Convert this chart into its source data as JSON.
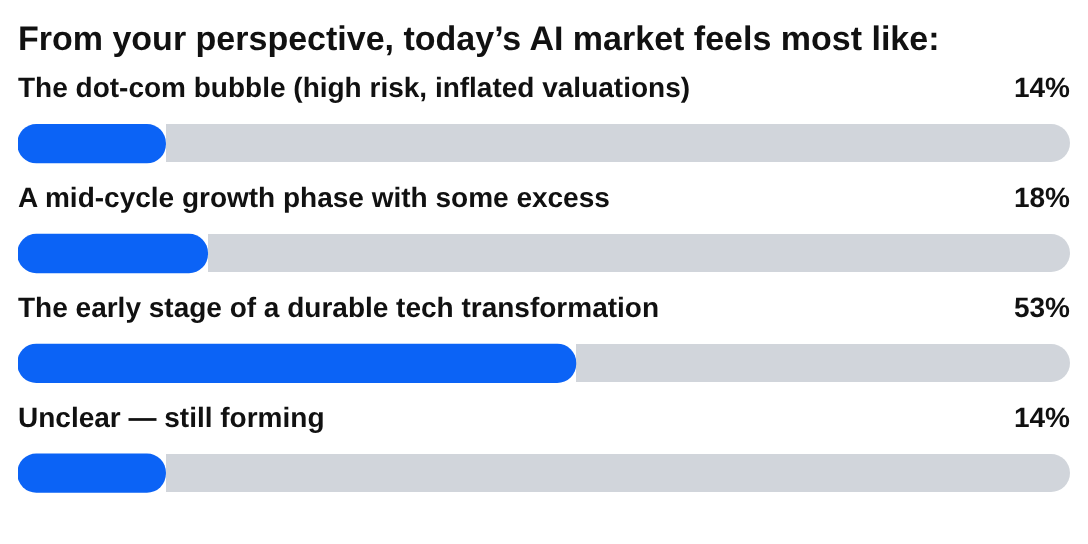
{
  "chart_data": {
    "type": "bar",
    "orientation": "horizontal",
    "title": "From your perspective, today’s AI market feels most like:",
    "categories": [
      "The dot-com bubble (high risk, inflated valuations)",
      "A mid-cycle growth phase with some excess",
      "The early stage of a durable tech transformation",
      "Unclear — still forming"
    ],
    "values": [
      14,
      18,
      53,
      14
    ],
    "value_labels": [
      "14%",
      "18%",
      "53%",
      "14%"
    ],
    "color": "#0b63f6",
    "xlim": [
      0,
      100
    ],
    "tick_labels": false,
    "legend": false
  }
}
